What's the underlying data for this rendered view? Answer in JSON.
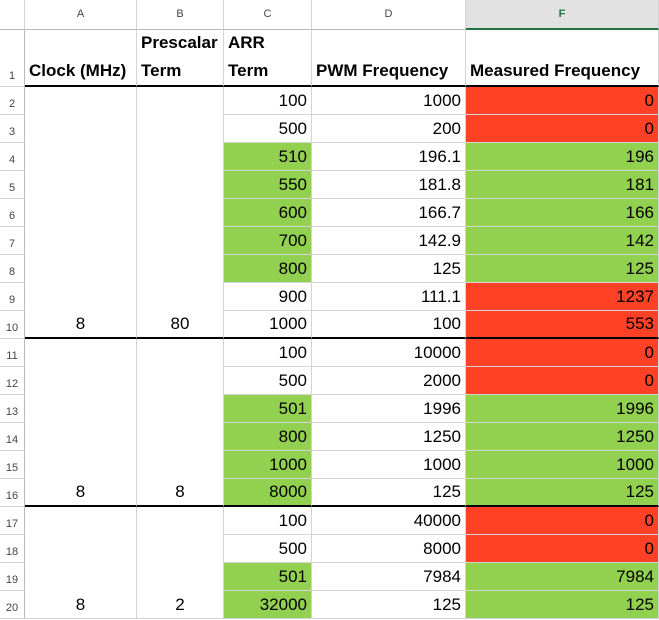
{
  "columns": [
    "A",
    "B",
    "C",
    "D",
    "F"
  ],
  "header": {
    "row_number": 1,
    "cells": [
      "Clock (MHz)",
      "Prescalar Term",
      "ARR Term",
      "PWM Frequency",
      "Measured Frequency"
    ]
  },
  "rows": [
    {
      "row_number": 2,
      "cells": [
        null,
        null,
        100,
        1000,
        0
      ],
      "fills": [
        null,
        null,
        null,
        null,
        "#ff4125"
      ]
    },
    {
      "row_number": 3,
      "cells": [
        null,
        null,
        500,
        200,
        0
      ],
      "fills": [
        null,
        null,
        null,
        null,
        "#ff4125"
      ]
    },
    {
      "row_number": 4,
      "cells": [
        null,
        null,
        510,
        196.1,
        196
      ],
      "fills": [
        null,
        null,
        "#92d050",
        null,
        "#92d050"
      ]
    },
    {
      "row_number": 5,
      "cells": [
        null,
        null,
        550,
        181.8,
        181
      ],
      "fills": [
        null,
        null,
        "#92d050",
        null,
        "#92d050"
      ]
    },
    {
      "row_number": 6,
      "cells": [
        null,
        null,
        600,
        166.7,
        166
      ],
      "fills": [
        null,
        null,
        "#92d050",
        null,
        "#92d050"
      ]
    },
    {
      "row_number": 7,
      "cells": [
        null,
        null,
        700,
        142.9,
        142
      ],
      "fills": [
        null,
        null,
        "#92d050",
        null,
        "#92d050"
      ]
    },
    {
      "row_number": 8,
      "cells": [
        null,
        null,
        800,
        125,
        125
      ],
      "fills": [
        null,
        null,
        "#92d050",
        null,
        "#92d050"
      ]
    },
    {
      "row_number": 9,
      "cells": [
        null,
        null,
        900,
        111.1,
        1237
      ],
      "fills": [
        null,
        null,
        null,
        null,
        "#ff4125"
      ]
    },
    {
      "row_number": 10,
      "cells": [
        8,
        80,
        1000,
        100,
        553
      ],
      "fills": [
        null,
        null,
        null,
        null,
        "#ff4125"
      ]
    },
    {
      "row_number": 11,
      "cells": [
        null,
        null,
        100,
        10000,
        0
      ],
      "fills": [
        null,
        null,
        null,
        null,
        "#ff4125"
      ]
    },
    {
      "row_number": 12,
      "cells": [
        null,
        null,
        500,
        2000,
        0
      ],
      "fills": [
        null,
        null,
        null,
        null,
        "#ff4125"
      ]
    },
    {
      "row_number": 13,
      "cells": [
        null,
        null,
        501,
        1996,
        1996
      ],
      "fills": [
        null,
        null,
        "#92d050",
        null,
        "#92d050"
      ]
    },
    {
      "row_number": 14,
      "cells": [
        null,
        null,
        800,
        1250,
        1250
      ],
      "fills": [
        null,
        null,
        "#92d050",
        null,
        "#92d050"
      ]
    },
    {
      "row_number": 15,
      "cells": [
        null,
        null,
        1000,
        1000,
        1000
      ],
      "fills": [
        null,
        null,
        "#92d050",
        null,
        "#92d050"
      ]
    },
    {
      "row_number": 16,
      "cells": [
        8,
        8,
        8000,
        125,
        125
      ],
      "fills": [
        null,
        null,
        "#92d050",
        null,
        "#92d050"
      ]
    },
    {
      "row_number": 17,
      "cells": [
        null,
        null,
        100,
        40000,
        0
      ],
      "fills": [
        null,
        null,
        null,
        null,
        "#ff4125"
      ]
    },
    {
      "row_number": 18,
      "cells": [
        null,
        null,
        500,
        8000,
        0
      ],
      "fills": [
        null,
        null,
        null,
        null,
        "#ff4125"
      ]
    },
    {
      "row_number": 19,
      "cells": [
        null,
        null,
        501,
        7984,
        7984
      ],
      "fills": [
        null,
        null,
        "#92d050",
        null,
        "#92d050"
      ]
    },
    {
      "row_number": 20,
      "cells": [
        8,
        2,
        32000,
        125,
        125
      ],
      "fills": [
        null,
        null,
        "#92d050",
        null,
        "#92d050"
      ]
    }
  ]
}
